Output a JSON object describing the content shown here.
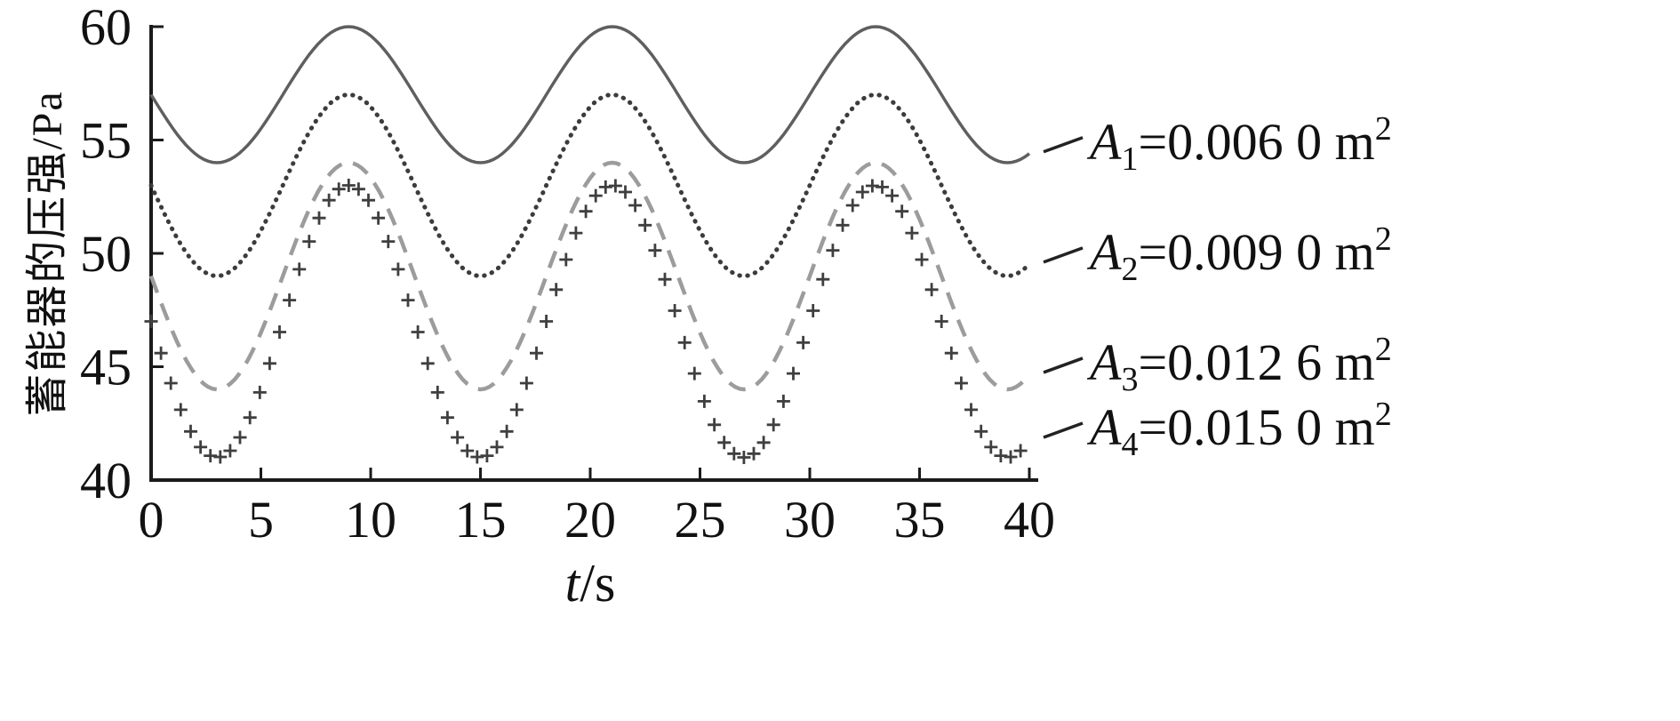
{
  "style": {
    "background": "#ffffff",
    "axis_color": "#1a1a1a",
    "text_color": "#111111",
    "legend_connector_color": "#222222"
  },
  "axes": {
    "ylabel": "蓄能器的压强/Pa",
    "xlabel_var": "t",
    "xlabel_rest": "/s"
  },
  "chart_data": {
    "type": "line",
    "title": "",
    "xlabel": "t/s",
    "ylabel": "蓄能器的压强/Pa",
    "xlim": [
      0,
      40
    ],
    "ylim": [
      40,
      60
    ],
    "x_ticks": [
      0,
      5,
      10,
      15,
      20,
      25,
      30,
      35,
      40
    ],
    "y_ticks": [
      40,
      45,
      50,
      55,
      60
    ],
    "grid": false,
    "legend_position": "right",
    "period_s": 12,
    "peak_time_s": 9,
    "trough_time_s": 3,
    "x": [
      0,
      1,
      2,
      3,
      4,
      5,
      6,
      7,
      8,
      9,
      10,
      11,
      12,
      13,
      14,
      15,
      16,
      17,
      18,
      19,
      20,
      21,
      22,
      23,
      24,
      25,
      26,
      27,
      28,
      29,
      30,
      31,
      32,
      33,
      34,
      35,
      36,
      37,
      38,
      39,
      40
    ],
    "series": [
      {
        "name": "A1",
        "label_text": "A₁=0.006 0 m²",
        "legend": {
          "sym": "A",
          "sub": "1",
          "rest": "=0.006 0 m",
          "sup": "2"
        },
        "style": "solid",
        "color": "#5f5f5f",
        "mean": 57,
        "amplitude": 3,
        "values": [
          57,
          55.5,
          54.4,
          54,
          54.4,
          55.5,
          57,
          58.5,
          59.6,
          60,
          59.6,
          58.5,
          57,
          55.5,
          54.4,
          54,
          54.4,
          55.5,
          57,
          58.5,
          59.6,
          60,
          59.6,
          58.5,
          57,
          55.5,
          54.4,
          54,
          54.4,
          55.5,
          57,
          58.5,
          59.6,
          60,
          59.6,
          58.5,
          57,
          55.5,
          54.4,
          54,
          54.4
        ]
      },
      {
        "name": "A2",
        "label_text": "A₂=0.009 0 m²",
        "legend": {
          "sym": "A",
          "sub": "2",
          "rest": "=0.009 0 m",
          "sup": "2"
        },
        "style": "dotted",
        "color": "#3c3c3c",
        "mean": 53,
        "amplitude": 4,
        "values": [
          53,
          51,
          49.5,
          49,
          49.5,
          51,
          53,
          55,
          56.5,
          57,
          56.5,
          55,
          53,
          51,
          49.5,
          49,
          49.5,
          51,
          53,
          55,
          56.5,
          57,
          56.5,
          55,
          53,
          51,
          49.5,
          49,
          49.5,
          51,
          53,
          55,
          56.5,
          57,
          56.5,
          55,
          53,
          51,
          49.5,
          49,
          49.5
        ]
      },
      {
        "name": "A3",
        "label_text": "A₃=0.012 6 m²",
        "legend": {
          "sym": "A",
          "sub": "3",
          "rest": "=0.012 6 m",
          "sup": "2"
        },
        "style": "dashed",
        "color": "#9c9c9c",
        "mean": 49,
        "amplitude": 5,
        "values": [
          49,
          46.5,
          44.7,
          44,
          44.7,
          46.5,
          49,
          51.5,
          53.3,
          54,
          53.3,
          51.5,
          49,
          46.5,
          44.7,
          44,
          44.7,
          46.5,
          49,
          51.5,
          53.3,
          54,
          53.3,
          51.5,
          49,
          46.5,
          44.7,
          44,
          44.7,
          46.5,
          49,
          51.5,
          53.3,
          54,
          53.3,
          51.5,
          49,
          46.5,
          44.7,
          44,
          44.7
        ]
      },
      {
        "name": "A4",
        "label_text": "A₄=0.015 0 m²",
        "legend": {
          "sym": "A",
          "sub": "4",
          "rest": "=0.015 0 m",
          "sup": "2"
        },
        "style": "plus",
        "color": "#3f3f3f",
        "mean": 47,
        "amplitude": 6,
        "marker_step_s": 0.45,
        "values": [
          47,
          44,
          41.8,
          41,
          41.8,
          44,
          47,
          50,
          52.2,
          53,
          52.2,
          50,
          47,
          44,
          41.8,
          41,
          41.8,
          44,
          47,
          50,
          52.2,
          53,
          52.2,
          50,
          47,
          44,
          41.8,
          41,
          41.8,
          44,
          47,
          50,
          52.2,
          53,
          52.2,
          50,
          47,
          44,
          41.8,
          41,
          41.8
        ]
      }
    ]
  }
}
